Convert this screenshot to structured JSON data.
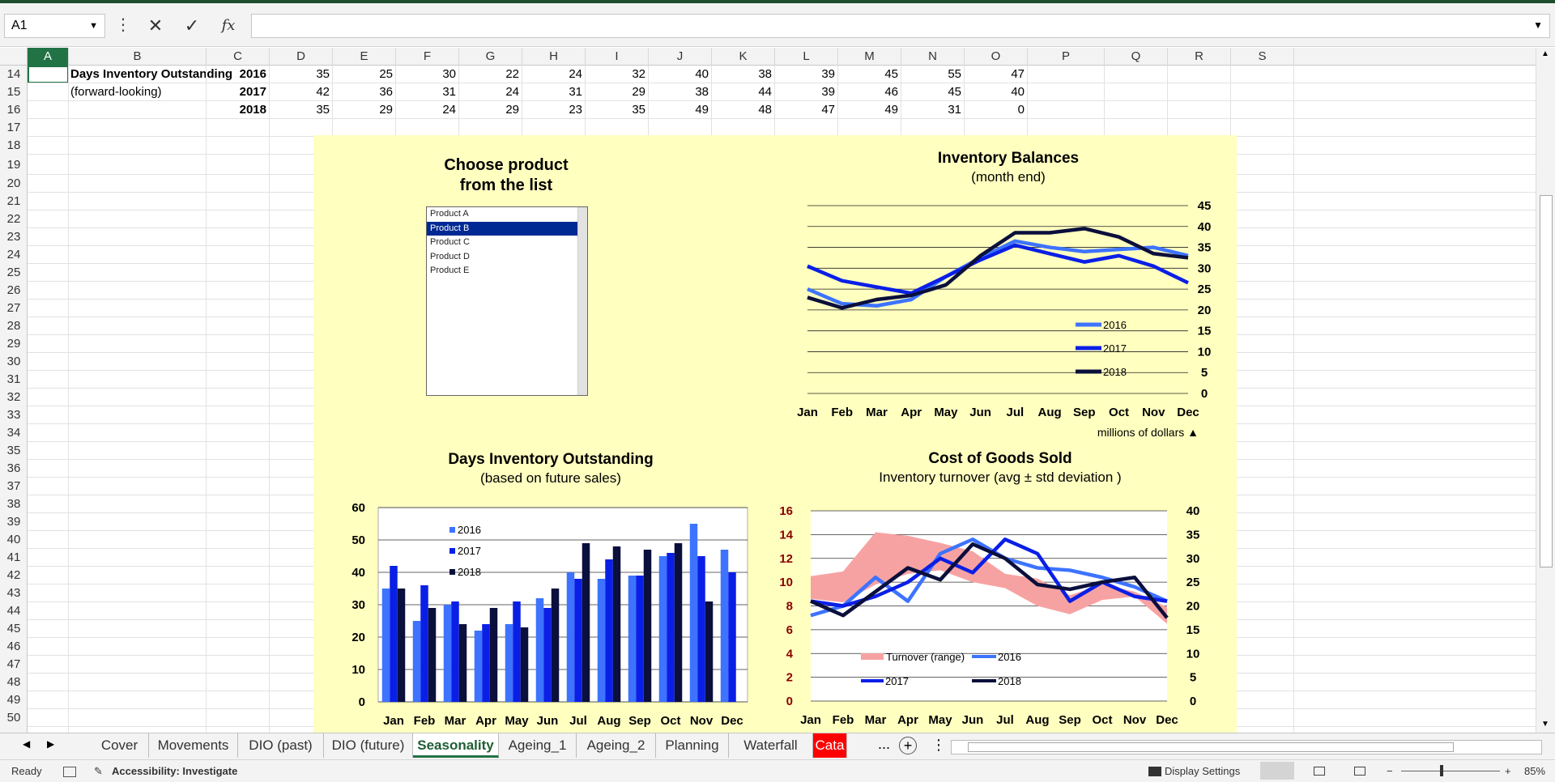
{
  "app": {
    "namebox": "A1",
    "formula": ""
  },
  "columns": [
    "A",
    "B",
    "C",
    "D",
    "E",
    "F",
    "G",
    "H",
    "I",
    "J",
    "K",
    "L",
    "M",
    "N",
    "O",
    "P",
    "Q",
    "R",
    "S"
  ],
  "rows": [
    14,
    15,
    16,
    17,
    18,
    19,
    20,
    21,
    22,
    23,
    24,
    25,
    26,
    27,
    28,
    29,
    30,
    31,
    32,
    33,
    34,
    35,
    36,
    37,
    38,
    39,
    40,
    41,
    42,
    43,
    44,
    45,
    46,
    47,
    48,
    49,
    50
  ],
  "sheet": {
    "label1": "Days Inventory Outstanding",
    "label2": "(forward-looking)",
    "dio_rows": [
      {
        "year": "2016",
        "values": [
          "35",
          "25",
          "30",
          "22",
          "24",
          "32",
          "40",
          "38",
          "39",
          "45",
          "55",
          "47"
        ]
      },
      {
        "year": "2017",
        "values": [
          "42",
          "36",
          "31",
          "24",
          "31",
          "29",
          "38",
          "44",
          "39",
          "46",
          "45",
          "40"
        ]
      },
      {
        "year": "2018",
        "values": [
          "35",
          "29",
          "24",
          "29",
          "23",
          "35",
          "49",
          "48",
          "47",
          "49",
          "31",
          "0"
        ]
      }
    ]
  },
  "dashboard": {
    "chooser_title_1": "Choose product",
    "chooser_title_2": "from the list",
    "products": [
      "Product A",
      "Product B",
      "Product C",
      "Product D",
      "Product E"
    ],
    "selected_product": "Product B",
    "inv_title": "Inventory Balances",
    "inv_sub": "(month end)",
    "inv_note": "millions of dollars ▲",
    "dio_title": "Days Inventory Outstanding",
    "dio_sub": "(based on future sales)",
    "cogs_title": "Cost of Goods Sold",
    "cogs_sub": "Inventory turnover (avg ± std deviation )"
  },
  "colors": {
    "c2016": "#3d73ff",
    "c2017": "#0a1fe6",
    "c2018": "#0a0f3c",
    "band": "#f7a2a2",
    "panel": "#ffffc0",
    "accent": "#217346"
  },
  "chart_data": [
    {
      "type": "line",
      "title": "Inventory Balances",
      "subtitle": "(month end)",
      "categories": [
        "Jan",
        "Feb",
        "Mar",
        "Apr",
        "May",
        "Jun",
        "Jul",
        "Aug",
        "Sep",
        "Oct",
        "Nov",
        "Dec"
      ],
      "ylim": [
        0,
        45
      ],
      "yticks": [
        "0",
        "5",
        "10",
        "15",
        "20",
        "25",
        "30",
        "35",
        "40",
        "45"
      ],
      "annotation": "millions of dollars ▲",
      "series": [
        {
          "name": "2016",
          "values": [
            25,
            21.5,
            21,
            22.5,
            28,
            32.5,
            36.5,
            35,
            34,
            34.5,
            35,
            33
          ]
        },
        {
          "name": "2017",
          "values": [
            30.5,
            27,
            25.5,
            24,
            28,
            32,
            35.5,
            33.5,
            31.5,
            33,
            30.5,
            26.5
          ]
        },
        {
          "name": "2018",
          "values": [
            23,
            20.5,
            22.5,
            23.5,
            26,
            33,
            38.5,
            38.5,
            39.5,
            37.5,
            33.5,
            32.5
          ]
        }
      ]
    },
    {
      "type": "bar",
      "title": "Days Inventory Outstanding",
      "subtitle": "(based on future sales)",
      "categories": [
        "Jan",
        "Feb",
        "Mar",
        "Apr",
        "May",
        "Jun",
        "Jul",
        "Aug",
        "Sep",
        "Oct",
        "Nov",
        "Dec"
      ],
      "ylim": [
        0,
        60
      ],
      "yticks": [
        "0",
        "10",
        "20",
        "30",
        "40",
        "50",
        "60"
      ],
      "series": [
        {
          "name": "2016",
          "values": [
            35,
            25,
            30,
            22,
            24,
            32,
            40,
            38,
            39,
            45,
            55,
            47
          ]
        },
        {
          "name": "2017",
          "values": [
            42,
            36,
            31,
            24,
            31,
            29,
            38,
            44,
            39,
            46,
            45,
            40
          ]
        },
        {
          "name": "2018",
          "values": [
            35,
            29,
            24,
            29,
            23,
            35,
            49,
            48,
            47,
            49,
            31,
            0
          ]
        }
      ]
    },
    {
      "type": "line",
      "title": "Cost of Goods Sold",
      "subtitle": "Inventory turnover (avg ± std deviation )",
      "categories": [
        "Jan",
        "Feb",
        "Mar",
        "Apr",
        "May",
        "Jun",
        "Jul",
        "Aug",
        "Sep",
        "Oct",
        "Nov",
        "Dec"
      ],
      "ylim_left": [
        0,
        16
      ],
      "ylim_right": [
        0,
        40
      ],
      "yticks_left": [
        "0",
        "2",
        "4",
        "6",
        "8",
        "10",
        "12",
        "14",
        "16"
      ],
      "yticks_right": [
        "0",
        "5",
        "10",
        "15",
        "20",
        "25",
        "30",
        "35",
        "40"
      ],
      "band": {
        "name": "Turnover (range)",
        "upper": [
          10.5,
          10.9,
          14.2,
          13.9,
          13.3,
          12.6,
          10.7,
          10.3,
          8.9,
          9.8,
          9.2,
          7.9
        ],
        "lower": [
          8.6,
          8.3,
          9.8,
          10.7,
          11.0,
          10.0,
          9.5,
          8.0,
          7.3,
          8.5,
          8.8,
          6.5
        ]
      },
      "series": [
        {
          "name": "2016",
          "values": [
            18,
            20,
            26,
            21,
            31,
            34,
            30,
            28,
            27.5,
            26,
            24,
            21
          ]
        },
        {
          "name": "2017",
          "values": [
            21,
            20,
            22,
            25,
            30,
            27,
            34,
            31,
            21,
            25,
            22,
            21
          ]
        },
        {
          "name": "2018",
          "values": [
            21,
            18,
            23,
            28,
            25.5,
            33,
            30,
            24.5,
            23.5,
            25,
            26,
            17.5
          ]
        }
      ]
    }
  ],
  "tabs": [
    "Cover",
    "Movements",
    "DIO (past)",
    "DIO (future)",
    "Seasonality",
    "Ageing_1",
    "Ageing_2",
    "Planning",
    "Waterfall",
    "Cata"
  ],
  "active_tab": "Seasonality",
  "status": {
    "ready": "Ready",
    "accessibility": "Accessibility: Investigate",
    "display": "Display Settings",
    "zoom": "85%",
    "more": "...",
    "add": "+"
  }
}
